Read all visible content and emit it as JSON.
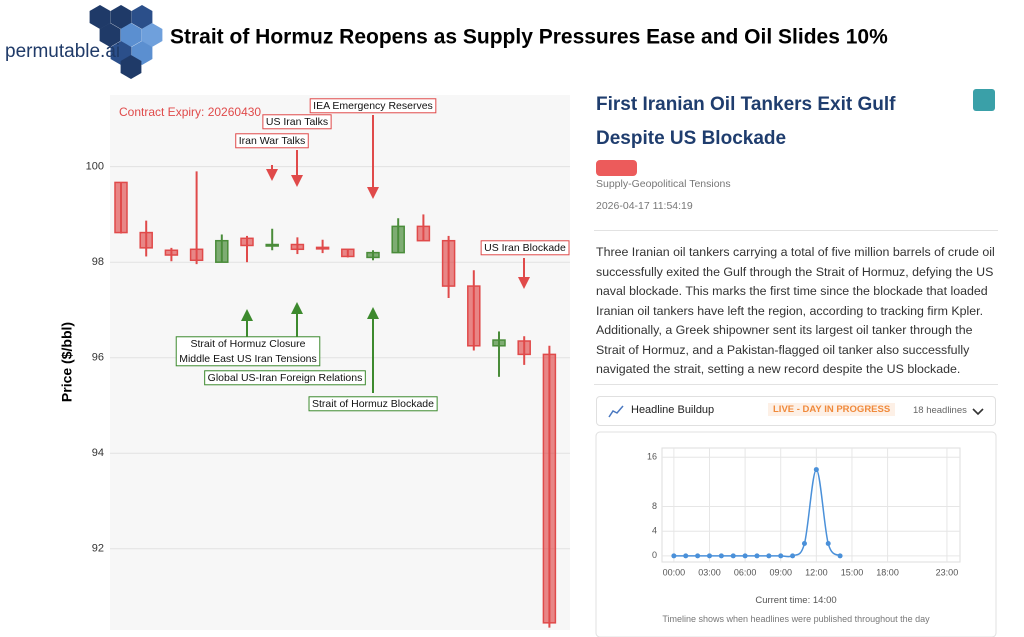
{
  "header": {
    "logo": "permutable.ai",
    "title": "Strait of Hormuz Reopens as Supply Pressures Ease and Oil Slides 10%"
  },
  "chart_data": [
    {
      "type": "candlestick",
      "ylabel": "Price ($/bbl)",
      "ylim": [
        90.3,
        101.5
      ],
      "yticks": [
        92,
        94,
        96,
        98,
        100
      ],
      "grid": true,
      "up_color": "#4a8c3a",
      "down_color": "#e04a4a",
      "open": [
        99.67,
        98.62,
        98.25,
        98.27,
        98.0,
        98.5,
        98.35,
        98.37,
        98.31,
        98.27,
        98.1,
        98.2,
        98.75,
        98.45,
        97.5,
        96.25,
        96.35,
        96.07
      ],
      "high": [
        99.67,
        98.87,
        98.3,
        99.9,
        98.58,
        98.55,
        98.7,
        98.52,
        98.47,
        98.27,
        98.25,
        98.92,
        99.0,
        98.55,
        97.83,
        96.55,
        96.45,
        96.25
      ],
      "low": [
        98.6,
        98.12,
        98.02,
        97.96,
        98.0,
        98.0,
        98.25,
        98.17,
        98.19,
        98.1,
        98.04,
        98.2,
        98.45,
        97.25,
        96.15,
        95.6,
        95.85,
        90.35
      ],
      "close": [
        98.62,
        98.3,
        98.15,
        98.04,
        98.45,
        98.35,
        98.37,
        98.27,
        98.29,
        98.12,
        98.2,
        98.75,
        98.45,
        97.5,
        96.25,
        96.37,
        96.07,
        90.45
      ],
      "annotations": [
        {
          "text": "Contract Expiry: 20260430",
          "color": "#e04a4a"
        },
        {
          "text": "IEA Emergency Reserves",
          "color": "#e04a4a"
        },
        {
          "text": "US Iran Talks",
          "color": "#e04a4a"
        },
        {
          "text": "Iran War Talks",
          "color": "#e04a4a"
        },
        {
          "text": "US Iran Blockade",
          "color": "#e04a4a"
        },
        {
          "text": "Strait of Hormuz Closure",
          "color": "#3d8a2e"
        },
        {
          "text": "Middle East US Iran Tensions",
          "color": "#3d8a2e"
        },
        {
          "text": "Global US-Iran Foreign Relations",
          "color": "#3d8a2e"
        },
        {
          "text": "Strait of Hormuz Blockade",
          "color": "#3d8a2e"
        }
      ]
    },
    {
      "type": "line",
      "x": [
        0,
        1,
        2,
        3,
        4,
        5,
        6,
        7,
        8,
        9,
        10,
        11,
        12,
        13,
        14
      ],
      "series": [
        {
          "color": "#4a90d9",
          "values": [
            0,
            0,
            0,
            0,
            0,
            0,
            0,
            0,
            0,
            0,
            0,
            2,
            14,
            2,
            0
          ]
        }
      ],
      "xlim": [
        -1,
        24.1
      ],
      "xticks": [
        {
          "value": 0,
          "label": "00:00"
        },
        {
          "value": 3,
          "label": "03:00"
        },
        {
          "value": 6,
          "label": "06:00"
        },
        {
          "value": 9,
          "label": "09:00"
        },
        {
          "value": 12,
          "label": "12:00"
        },
        {
          "value": 15,
          "label": "15:00"
        },
        {
          "value": 18,
          "label": "18:00"
        },
        {
          "value": 23,
          "label": "23:00"
        }
      ],
      "ylim": [
        -1,
        17.5
      ],
      "yticks": [
        0,
        4,
        8,
        16
      ],
      "grid": true
    }
  ],
  "article": {
    "title": "First Iranian Oil Tankers Exit Gulf Despite US Blockade",
    "category": "Supply-Geopolitical Tensions",
    "timestamp": "2026-04-17 11:54:19",
    "body": "Three Iranian oil tankers carrying a total of five million barrels of crude oil successfully exited the Gulf through the Strait of Hormuz, defying the US naval blockade. This marks the first time since the blockade that loaded Iranian oil tankers have left the region, according to tracking firm Kpler. Additionally, a Greek shipowner sent its largest oil tanker through the Strait of Hormuz, and a Pakistan-flagged oil tanker also successfully navigated the strait, setting a new record despite the US blockade."
  },
  "panel": {
    "title": "Headline Buildup",
    "status": "LIVE - DAY IN PROGRESS",
    "count": "18 headlines",
    "current_time": "Current time: 14:00",
    "note": "Timeline shows when headlines were published throughout the day"
  }
}
